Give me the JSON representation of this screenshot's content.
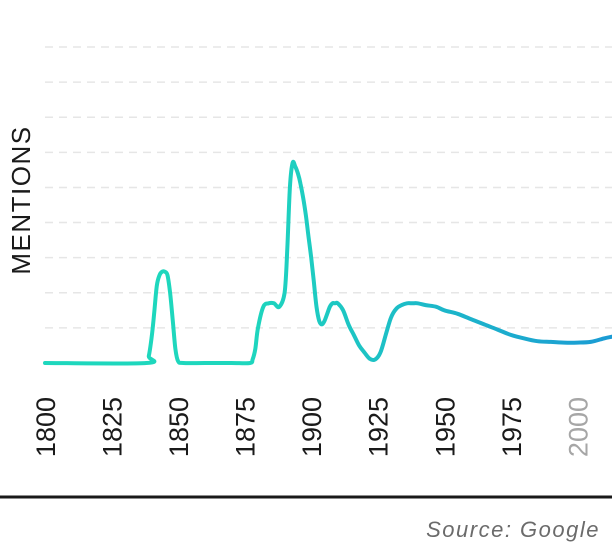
{
  "chart_data": {
    "type": "line",
    "title": "",
    "xlabel": "",
    "ylabel": "MENTIONS",
    "xlim": [
      1800,
      2013
    ],
    "ylim": [
      0,
      9
    ],
    "x_ticks": [
      "1800",
      "1825",
      "1850",
      "1875",
      "1900",
      "1925",
      "1950",
      "1975",
      "2000"
    ],
    "x_ticks_muted": [
      "2000"
    ],
    "grid": true,
    "legend": "none",
    "colors": {
      "line_start": "#1ed7bd",
      "line_end": "#1b9bd4",
      "muted_tick": "#a6a6a6"
    },
    "series": [
      {
        "x": [
          1800,
          1838,
          1839,
          1840,
          1841,
          1842,
          1843,
          1844,
          1845,
          1846,
          1847,
          1848,
          1849,
          1850,
          1852,
          1860,
          1870,
          1877,
          1878,
          1879,
          1880,
          1882,
          1884,
          1886,
          1888,
          1890,
          1891,
          1892,
          1893,
          1894,
          1895,
          1896,
          1897,
          1898,
          1899,
          1900,
          1901,
          1902,
          1903,
          1904,
          1905,
          1906,
          1907,
          1908,
          1909,
          1910,
          1912,
          1914,
          1916,
          1918,
          1920,
          1922,
          1924,
          1926,
          1928,
          1930,
          1932,
          1934,
          1936,
          1938,
          1940,
          1943,
          1947,
          1950,
          1955,
          1960,
          1965,
          1970,
          1975,
          1980,
          1985,
          1990,
          1995,
          2000,
          2005,
          2010,
          2013
        ],
        "y": [
          0,
          0,
          0.2,
          0.7,
          1.4,
          2.2,
          2.5,
          2.6,
          2.6,
          2.5,
          2.0,
          1.2,
          0.4,
          0.05,
          0,
          0,
          0,
          0,
          0.1,
          0.4,
          1.0,
          1.6,
          1.7,
          1.7,
          1.6,
          2.0,
          3.2,
          5.0,
          5.7,
          5.6,
          5.4,
          5.1,
          4.7,
          4.2,
          3.6,
          3.0,
          2.3,
          1.6,
          1.2,
          1.1,
          1.2,
          1.4,
          1.6,
          1.7,
          1.7,
          1.7,
          1.5,
          1.1,
          0.8,
          0.5,
          0.3,
          0.12,
          0.1,
          0.3,
          0.8,
          1.3,
          1.55,
          1.65,
          1.7,
          1.7,
          1.7,
          1.65,
          1.6,
          1.5,
          1.4,
          1.25,
          1.1,
          0.95,
          0.8,
          0.7,
          0.62,
          0.6,
          0.58,
          0.58,
          0.6,
          0.7,
          0.75
        ]
      }
    ]
  },
  "source": "Source: Google"
}
